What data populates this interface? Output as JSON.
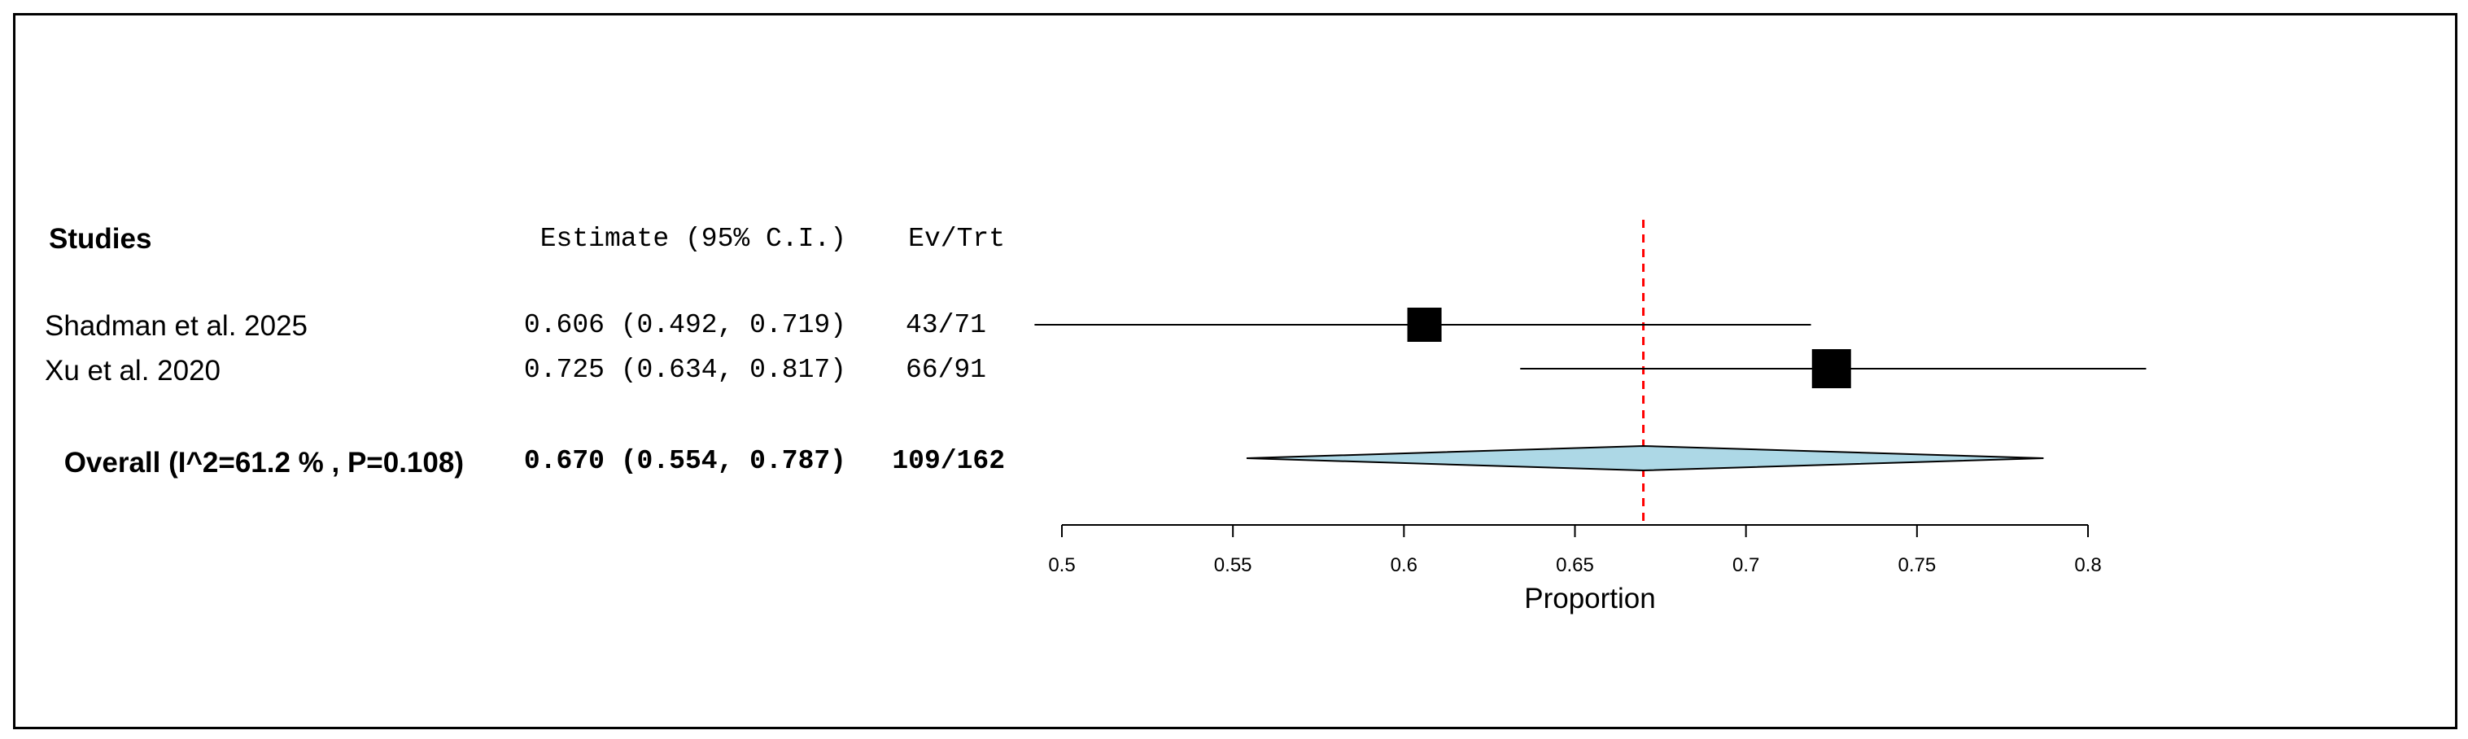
{
  "chart_data": {
    "type": "forest",
    "headers": {
      "studies": "Studies",
      "estimate": "Estimate (95% C.I.)",
      "events": "Ev/Trt"
    },
    "studies": [
      {
        "name": "Shadman et al. 2025",
        "estimate": 0.606,
        "lower": 0.492,
        "upper": 0.719,
        "ci_text": "0.606 (0.492, 0.719)",
        "events": "43/71"
      },
      {
        "name": "Xu et al. 2020",
        "estimate": 0.725,
        "lower": 0.634,
        "upper": 0.817,
        "ci_text": "0.725 (0.634, 0.817)",
        "events": "66/91"
      }
    ],
    "overall": {
      "name": "Overall (I^2=61.2 % , P=0.108)",
      "estimate": 0.67,
      "lower": 0.554,
      "upper": 0.787,
      "ci_text": "0.670 (0.554, 0.787)",
      "events": "109/162"
    },
    "xlabel": "Proportion",
    "xlim": [
      0.5,
      0.8
    ],
    "xticks": [
      0.5,
      0.55,
      0.6,
      0.65,
      0.7,
      0.75,
      0.8
    ],
    "xtick_labels": [
      "0.5",
      "0.55",
      "0.6",
      "0.65",
      "0.7",
      "0.75",
      "0.8"
    ],
    "reference_line": 0.67,
    "colors": {
      "marker": "#000000",
      "diamond": "#add8e6",
      "reference": "#ff0000"
    }
  }
}
